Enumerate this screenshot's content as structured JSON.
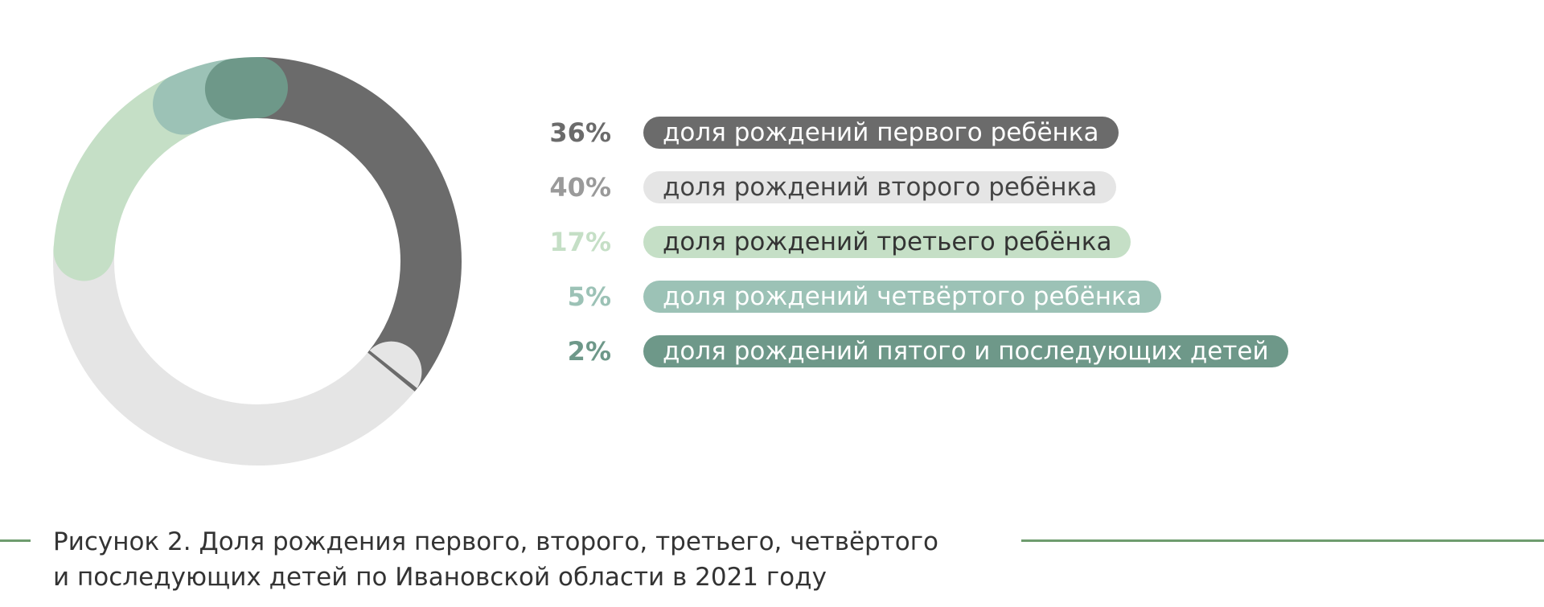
{
  "chart_data": {
    "type": "pie",
    "categories": [
      "доля рождений первого ребёнка",
      "доля рождений второго ребёнка",
      "доля рождений третьего ребёнка",
      "доля рождений четвёртого ребёнка",
      "доля рождений пятого и последующих детей"
    ],
    "values": [
      36,
      40,
      17,
      5,
      2
    ],
    "value_labels": [
      "36%",
      "40%",
      "17%",
      "5%",
      "2%"
    ],
    "unit": "%",
    "colors": [
      "#6b6b6b",
      "#e5e5e5",
      "#c5dfc6",
      "#9cc2b6",
      "#6e9889"
    ],
    "label_colors": [
      "#6b6b6b",
      "#9a9a9a",
      "#c5dfc6",
      "#9cc2b6",
      "#6e9889"
    ],
    "text_colors": [
      "#ffffff",
      "#444444",
      "#333333",
      "#ffffff",
      "#ffffff"
    ],
    "style": "donut",
    "legend": "right"
  },
  "caption": {
    "line1": "Рисунок 2. Доля рождения первого, второго, третьего, четвёртого",
    "line2": "и последующих детей по Ивановской области в 2021 году",
    "accent": "#6e9c6e"
  }
}
